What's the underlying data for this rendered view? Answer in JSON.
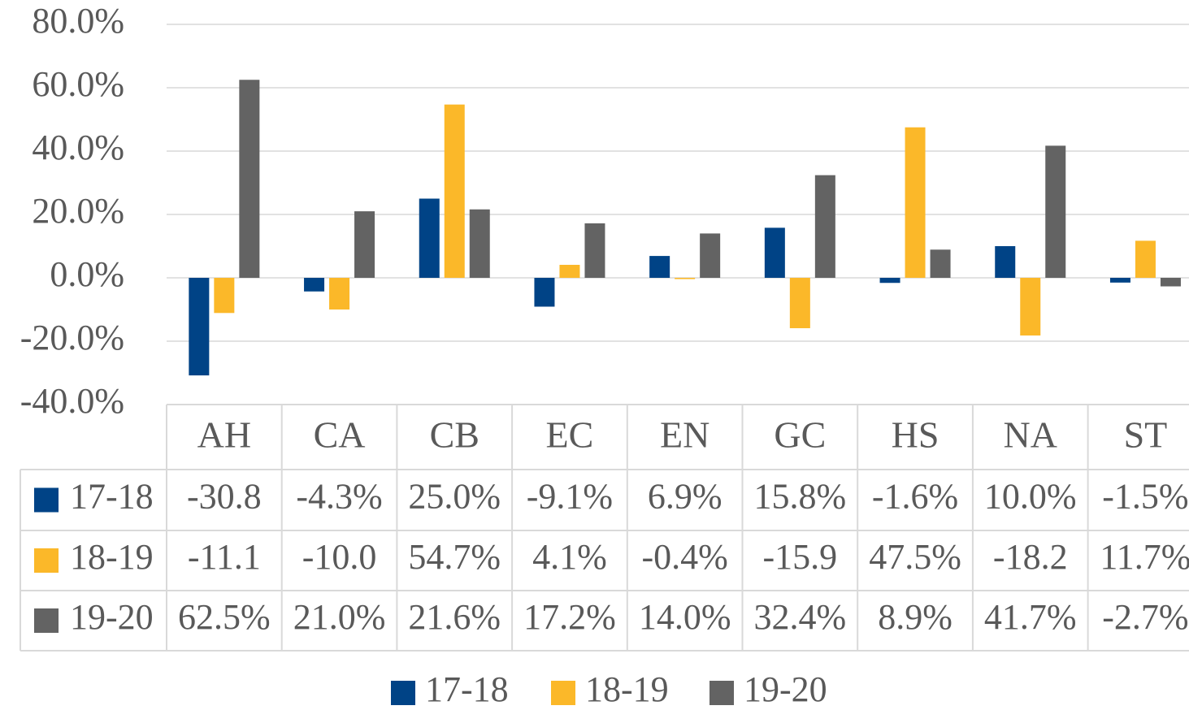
{
  "chart_data": {
    "type": "bar",
    "categories": [
      "AH",
      "CA",
      "CB",
      "EC",
      "EN",
      "GC",
      "HS",
      "NA",
      "ST"
    ],
    "series": [
      {
        "name": "17-18",
        "color": "#004386",
        "values": [
          -30.8,
          -4.3,
          25.0,
          -9.1,
          6.9,
          15.8,
          -1.6,
          10.0,
          -1.5
        ],
        "value_labels": [
          "-30.8",
          "-4.3%",
          "25.0%",
          "-9.1%",
          "6.9%",
          "15.8%",
          "-1.6%",
          "10.0%",
          "-1.5%"
        ]
      },
      {
        "name": "18-19",
        "color": "#fbb829",
        "values": [
          -11.1,
          -10.0,
          54.7,
          4.1,
          -0.4,
          -15.9,
          47.5,
          -18.2,
          11.7
        ],
        "value_labels": [
          "-11.1",
          "-10.0",
          "54.7%",
          "4.1%",
          "-0.4%",
          "-15.9",
          "47.5%",
          "-18.2",
          "11.7%"
        ]
      },
      {
        "name": "19-20",
        "color": "#636363",
        "values": [
          62.5,
          21.0,
          21.6,
          17.2,
          14.0,
          32.4,
          8.9,
          41.7,
          -2.7
        ],
        "value_labels": [
          "62.5%",
          "21.0%",
          "21.6%",
          "17.2%",
          "14.0%",
          "32.4%",
          "8.9%",
          "41.7%",
          "-2.7%"
        ]
      }
    ],
    "ylim": [
      -40,
      80
    ],
    "yticks": [
      {
        "value": -40,
        "label": "-40.0%"
      },
      {
        "value": -20,
        "label": "-20.0%"
      },
      {
        "value": 0,
        "label": "0.0%"
      },
      {
        "value": 20,
        "label": "20.0%"
      },
      {
        "value": 40,
        "label": "40.0%"
      },
      {
        "value": 60,
        "label": "60.0%"
      },
      {
        "value": 80,
        "label": "80.0%"
      }
    ],
    "grid": true,
    "legend": "bottom"
  }
}
